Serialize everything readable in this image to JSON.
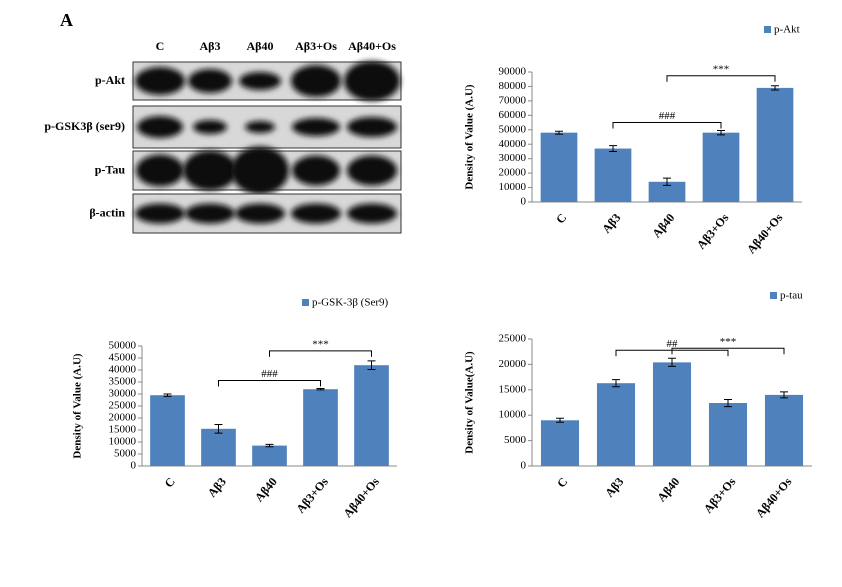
{
  "panel_label": "A",
  "blot": {
    "lanes": [
      "C",
      "Aβ3",
      "Aβ40",
      "Aβ3+Os",
      "Aβ40+Os"
    ],
    "rows": [
      "p-Akt",
      "p-GSK3β (ser9)",
      "p-Tau",
      "β-actin"
    ]
  },
  "chart_data": [
    {
      "type": "bar",
      "legend": "p-Akt",
      "ylabel": "Density of Value (A.U)",
      "color": "#4f81bd",
      "categories": [
        "C",
        "Aβ3",
        "Aβ40",
        "Aβ3+Os",
        "Aβ40+Os"
      ],
      "values": [
        48000,
        37000,
        14000,
        48000,
        79000
      ],
      "errors": [
        1000,
        2000,
        2500,
        1500,
        1500
      ],
      "ylim": [
        0,
        90000
      ],
      "yticks": [
        0,
        10000,
        20000,
        30000,
        40000,
        50000,
        60000,
        70000,
        80000,
        90000
      ],
      "annotations": [
        {
          "text": "###",
          "between": [
            "Aβ3",
            "Aβ3+Os"
          ]
        },
        {
          "text": "***",
          "between": [
            "Aβ40",
            "Aβ40+Os"
          ]
        }
      ]
    },
    {
      "type": "bar",
      "legend": "p-GSK-3β (Ser9)",
      "ylabel": "Density of Value (A.U)",
      "color": "#4f81bd",
      "categories": [
        "C",
        "Aβ3",
        "Aβ40",
        "Aβ3+Os",
        "Aβ40+Os"
      ],
      "values": [
        29500,
        15500,
        8500,
        32000,
        42000
      ],
      "errors": [
        500,
        1800,
        500,
        300,
        1800
      ],
      "ylim": [
        0,
        50000
      ],
      "yticks": [
        0,
        5000,
        10000,
        15000,
        20000,
        25000,
        30000,
        35000,
        40000,
        45000,
        50000
      ],
      "annotations": [
        {
          "text": "###",
          "between": [
            "Aβ3",
            "Aβ3+Os"
          ]
        },
        {
          "text": "***",
          "between": [
            "Aβ40",
            "Aβ40+Os"
          ]
        }
      ]
    },
    {
      "type": "bar",
      "legend": "p-tau",
      "ylabel": "Density of Value(A.U)",
      "color": "#4f81bd",
      "categories": [
        "C",
        "Aβ3",
        "Aβ40",
        "Aβ3+Os",
        "Aβ40+Os"
      ],
      "values": [
        9000,
        16300,
        20400,
        12400,
        14000
      ],
      "errors": [
        400,
        700,
        800,
        700,
        600
      ],
      "ylim": [
        0,
        25000
      ],
      "yticks": [
        0,
        5000,
        10000,
        15000,
        20000,
        25000
      ],
      "annotations": [
        {
          "text": "##",
          "between": [
            "Aβ3",
            "Aβ3+Os"
          ]
        },
        {
          "text": "***",
          "between": [
            "Aβ40",
            "Aβ40+Os"
          ]
        }
      ]
    }
  ]
}
